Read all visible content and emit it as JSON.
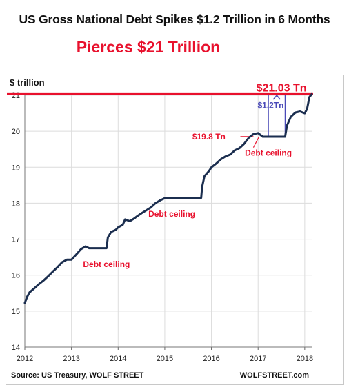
{
  "header": {
    "title": "US Gross National Debt Spikes $1.2 Trillion in 6 Months",
    "subtitle": "Pierces $21 Trillion"
  },
  "footer": {
    "source": "Source: US Treasury, WOLF STREET",
    "brand": "WOLFSTREET.com"
  },
  "colors": {
    "line": "#1b2e4f",
    "accent": "#e8112d",
    "callout": "#4a4ab8",
    "grid": "#dcdcdc"
  },
  "chart_data": {
    "type": "line",
    "title": "US Gross National Debt Spikes $1.2 Trillion in 6 Months",
    "subtitle": "Pierces $21 Trillion",
    "ylabel": "$ trillion",
    "xlabel": "",
    "xlim": [
      2012,
      2018.15
    ],
    "ylim": [
      14,
      21
    ],
    "xticks": [
      "2012",
      "2013",
      "2014",
      "2015",
      "2016",
      "2017",
      "2018"
    ],
    "yticks": [
      "14",
      "15",
      "16",
      "17",
      "18",
      "19",
      "20",
      "21"
    ],
    "grid": true,
    "series": [
      {
        "x": [
          2012.0,
          2012.05,
          2012.1,
          2012.2,
          2012.3,
          2012.4,
          2012.5,
          2012.6,
          2012.7,
          2012.8,
          2012.9,
          2013.0,
          2013.1,
          2013.2,
          2013.3,
          2013.38,
          2013.75,
          2013.78,
          2013.85,
          2013.95,
          2014.0,
          2014.1,
          2014.15,
          2014.25,
          2014.35,
          2014.4,
          2014.5,
          2014.6,
          2014.7,
          2014.8,
          2014.9,
          2015.0,
          2015.08,
          2015.15,
          2015.78,
          2015.8,
          2015.85,
          2015.95,
          2016.0,
          2016.1,
          2016.2,
          2016.3,
          2016.4,
          2016.5,
          2016.6,
          2016.7,
          2016.8,
          2016.9,
          2017.0,
          2017.05,
          2017.1,
          2017.58,
          2017.62,
          2017.7,
          2017.8,
          2017.9,
          2018.0,
          2018.05,
          2018.1,
          2018.15
        ],
        "y": [
          15.23,
          15.4,
          15.52,
          15.63,
          15.75,
          15.85,
          15.97,
          16.1,
          16.22,
          16.36,
          16.43,
          16.43,
          16.57,
          16.72,
          16.8,
          16.75,
          16.75,
          17.05,
          17.2,
          17.26,
          17.33,
          17.4,
          17.55,
          17.5,
          17.58,
          17.63,
          17.72,
          17.8,
          17.88,
          18.0,
          18.08,
          18.14,
          18.15,
          18.15,
          18.15,
          18.45,
          18.75,
          18.9,
          19.0,
          19.1,
          19.22,
          19.3,
          19.35,
          19.47,
          19.53,
          19.65,
          19.82,
          19.92,
          19.95,
          19.9,
          19.85,
          19.85,
          20.16,
          20.4,
          20.52,
          20.55,
          20.5,
          20.62,
          20.95,
          21.03
        ]
      }
    ],
    "annotations": [
      {
        "text": "$21.03 Tn",
        "x": 2017.5,
        "y": 21.03
      },
      {
        "text": "$1.2Tn",
        "x": 2017.27,
        "y": 20.65
      },
      {
        "text": "$19.8 Tn",
        "x": 2016.3,
        "y": 19.85
      },
      {
        "text": "Debt ceiling",
        "x": 2013.75,
        "y": 16.3
      },
      {
        "text": "Debt ceiling",
        "x": 2015.15,
        "y": 17.7
      },
      {
        "text": "Debt ceiling",
        "x": 2017.22,
        "y": 19.4
      }
    ],
    "reference_line": {
      "y": 21.03
    }
  }
}
